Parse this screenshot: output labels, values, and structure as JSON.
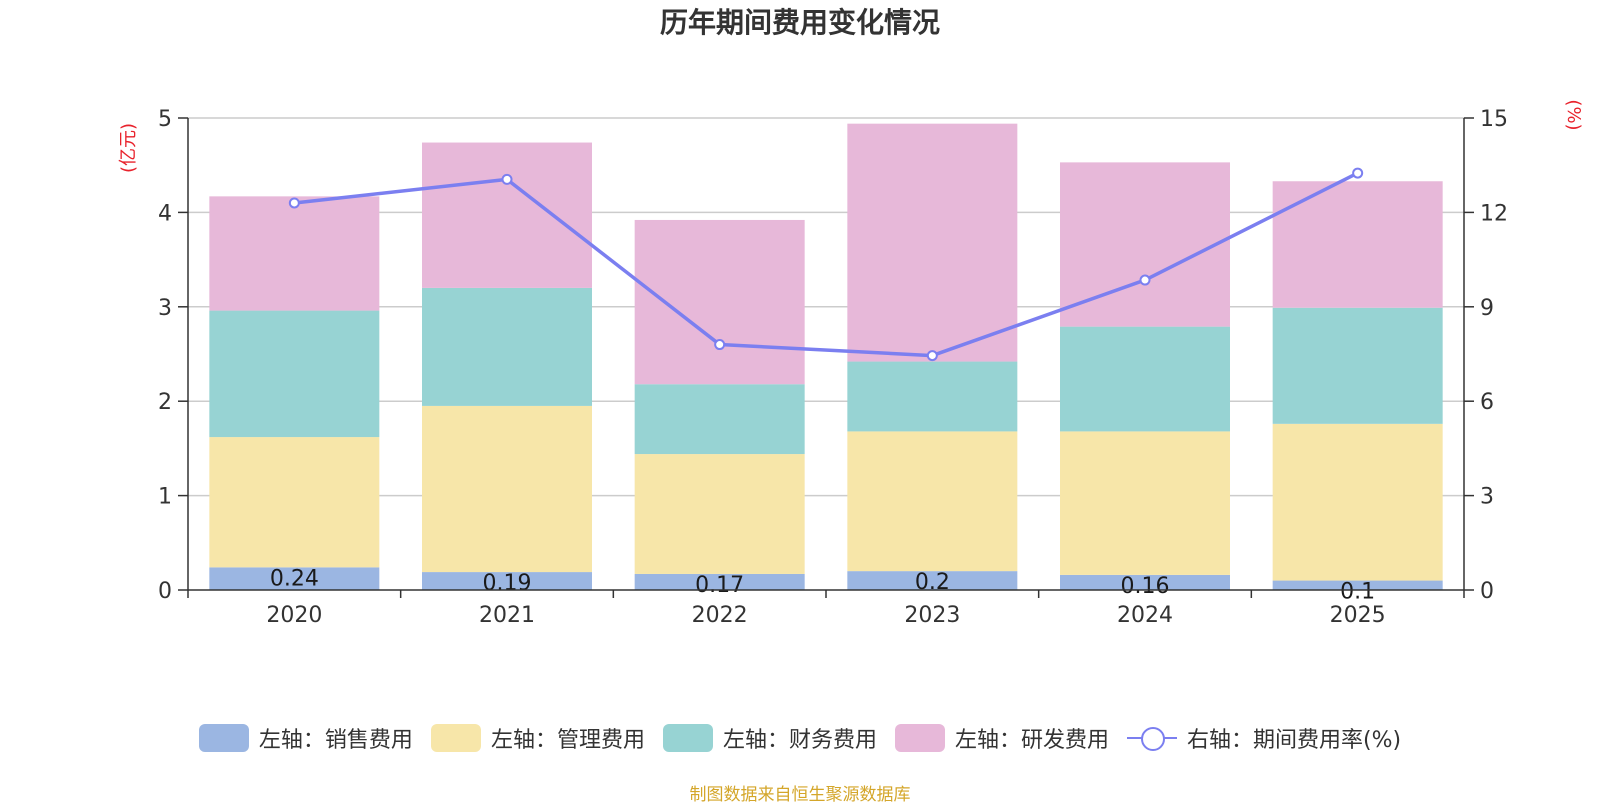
{
  "chart_data": {
    "type": "bar",
    "stacked": true,
    "title": "历年期间费用变化情况",
    "categories": [
      "2020",
      "2021",
      "2022",
      "2023",
      "2024",
      "2025"
    ],
    "left_axis": {
      "label": "(亿元)",
      "ylim": [
        0,
        5
      ],
      "ticks": [
        "0",
        "1",
        "2",
        "3",
        "4",
        "5"
      ]
    },
    "right_axis": {
      "label": "(%)",
      "ylim": [
        0,
        15
      ],
      "ticks": [
        "0",
        "3",
        "6",
        "9",
        "12",
        "15"
      ]
    },
    "grid": true,
    "legend_position": "bottom",
    "series": [
      {
        "name": "左轴：销售费用",
        "axis": "left",
        "color": "#9BB6E2",
        "values": [
          0.24,
          0.19,
          0.17,
          0.2,
          0.16,
          0.1
        ],
        "labels": [
          "0.24",
          "0.19",
          "0.17",
          "0.2",
          "0.16",
          "0.1"
        ]
      },
      {
        "name": "左轴：管理费用",
        "axis": "left",
        "color": "#F7E6A9",
        "values": [
          1.38,
          1.76,
          1.27,
          1.48,
          1.52,
          1.66
        ]
      },
      {
        "name": "左轴：财务费用",
        "axis": "left",
        "color": "#97D3D3",
        "values": [
          1.34,
          1.25,
          0.74,
          0.74,
          1.11,
          1.23
        ]
      },
      {
        "name": "左轴：研发费用",
        "axis": "left",
        "color": "#E7B8D9",
        "values": [
          1.21,
          1.54,
          1.74,
          2.52,
          1.74,
          1.34
        ]
      },
      {
        "name": "右轴：期间费用率(%)",
        "axis": "right",
        "type": "line",
        "color": "#7B7FF0",
        "values": [
          12.3,
          13.05,
          7.8,
          7.45,
          9.85,
          13.25
        ]
      }
    ]
  },
  "source": "制图数据来自恒生聚源数据库",
  "colors": {
    "axis_label": "#E8222C",
    "text": "#333333",
    "grid": "#CCCCCC",
    "source": "#D4A62A"
  }
}
